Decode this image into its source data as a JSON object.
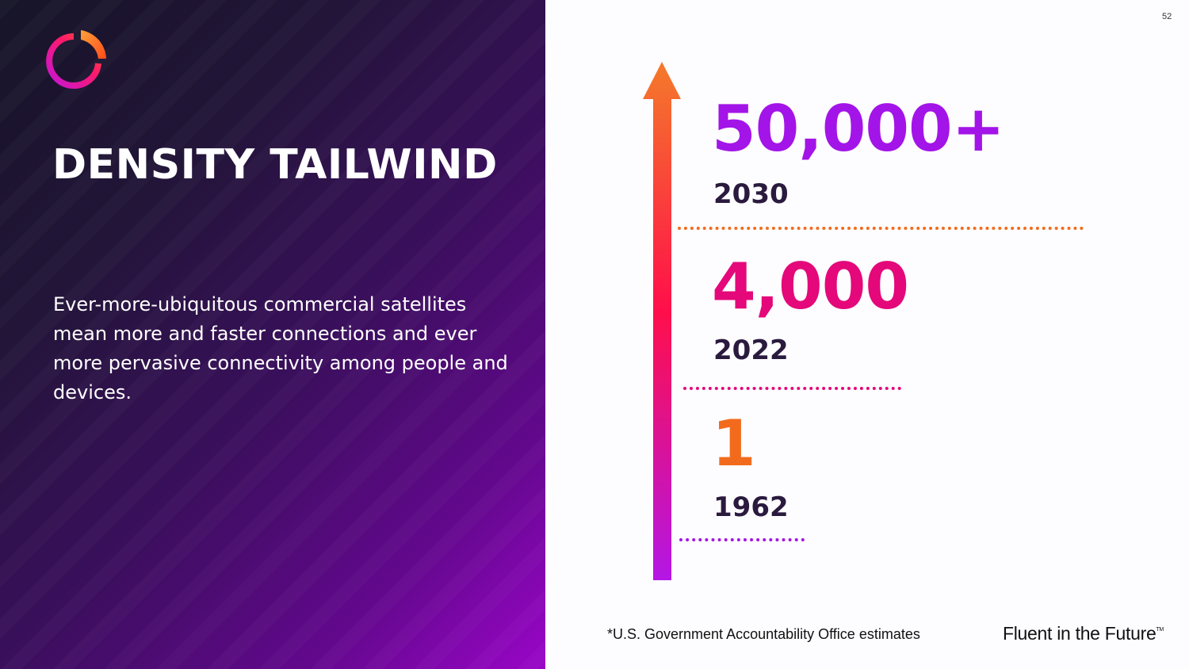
{
  "slide": {
    "title": "DENSITY TAILWIND",
    "body": "Ever-more-ubiquitous commercial satellites mean more and faster connections and ever more pervasive connectivity among people and devices.",
    "page_number": "52"
  },
  "stats": [
    {
      "value": "50,000+",
      "year": "2030",
      "color": "#a314e8"
    },
    {
      "value": "4,000",
      "year": "2022",
      "color": "#e4087a"
    },
    {
      "value": "1",
      "year": "1962",
      "color": "#f26b1d"
    }
  ],
  "footer": {
    "footnote": "*U.S. Government Accountability Office estimates",
    "brand": "Fluent in the Future",
    "trademark": "TM"
  },
  "colors": {
    "accent_orange": "#f26b1d",
    "accent_pink": "#ff1a5c",
    "accent_purple": "#b218e6",
    "dark_text": "#2a1a3e"
  },
  "icons": {
    "logo": "circular-ring-logo-icon",
    "arrow": "up-arrow-icon"
  }
}
